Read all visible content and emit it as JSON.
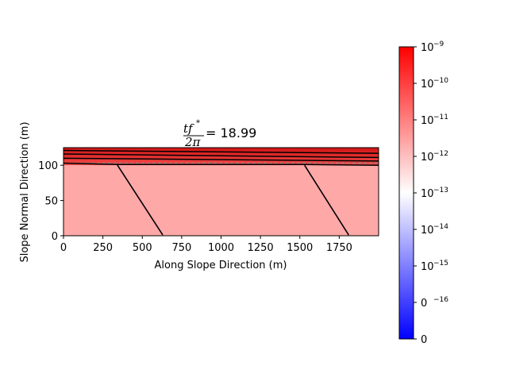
{
  "chart_data": {
    "type": "heatmap",
    "title": {
      "numerator": "tf",
      "superscript": "*",
      "denominator": "2π",
      "equals": "= 18.99"
    },
    "xlabel": "Along Slope Direction (m)",
    "ylabel": "Slope Normal Direction (m)",
    "xlim": [
      0,
      2000
    ],
    "ylim": [
      0,
      125
    ],
    "xticks": [
      0,
      250,
      500,
      750,
      1000,
      1250,
      1500,
      1750
    ],
    "xtick_labels": [
      "0",
      "250",
      "500",
      "750",
      "1000",
      "1250",
      "1500",
      "1750"
    ],
    "yticks": [
      0,
      50,
      100
    ],
    "ytick_labels": [
      "0",
      "50",
      "100"
    ],
    "field": {
      "lower_region": {
        "y_range": [
          0,
          100
        ],
        "color": "#ffa8a8"
      },
      "upper_layer": {
        "y_range": [
          100,
          125
        ],
        "color_bottom": "#f24a4a",
        "color_top": "#d11414"
      }
    },
    "contours_upper": [
      [
        [
          0,
          121
        ],
        [
          2000,
          117
        ]
      ],
      [
        [
          0,
          116
        ],
        [
          2000,
          111
        ]
      ],
      [
        [
          0,
          110
        ],
        [
          2000,
          106
        ]
      ]
    ],
    "dashed_line": {
      "points": [
        [
          0,
          103
        ],
        [
          2000,
          103
        ]
      ],
      "color": "#888888"
    },
    "interface_line": [
      [
        0,
        103
      ],
      [
        350,
        101
      ],
      [
        1530,
        101
      ],
      [
        2000,
        100
      ]
    ],
    "faults": [
      [
        [
          340,
          101
        ],
        [
          630,
          1
        ]
      ],
      [
        [
          1530,
          100
        ],
        [
          1810,
          1
        ]
      ]
    ],
    "colorbar": {
      "scale": "symlog",
      "colors": [
        "#0000ff",
        "#ffffff",
        "#ff0000"
      ],
      "tick_mantissa": [
        "10",
        "10",
        "10",
        "10",
        "10",
        "10",
        "10",
        "0"
      ],
      "tick_exponents": [
        "−9",
        "−10",
        "−11",
        "−12",
        "−13",
        "−14",
        "−15",
        "−16"
      ],
      "bottom_label": "0"
    }
  }
}
